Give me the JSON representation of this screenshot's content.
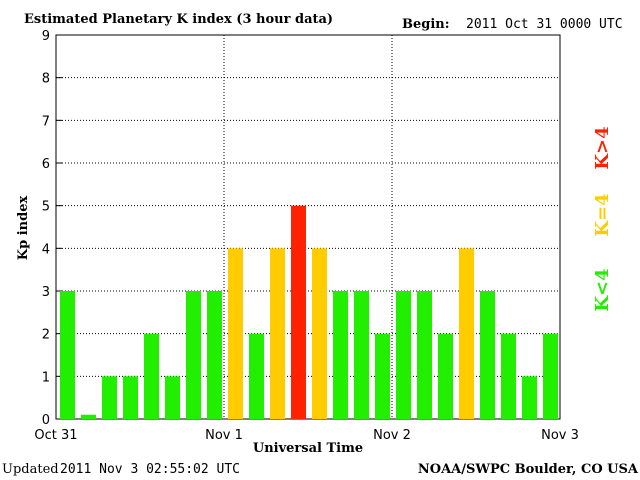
{
  "header": {
    "title": "Estimated Planetary K index (3 hour data)",
    "begin_label": "Begin:",
    "begin_value": "2011 Oct 31 0000 UTC"
  },
  "footer": {
    "updated_label": "Updated",
    "updated_value": "2011 Nov  3 02:55:02 UTC",
    "source": "NOAA/SWPC Boulder, CO USA"
  },
  "legend": {
    "low": "K<4",
    "mid": "K=4",
    "high": "K>4"
  },
  "colors": {
    "low": "#22ee00",
    "mid": "#ffcc00",
    "high": "#ff2200",
    "grid": "#000000"
  },
  "chart_data": {
    "type": "bar",
    "title": "Estimated Planetary K index (3 hour data)",
    "xlabel": "Universal Time",
    "ylabel": "Kp index",
    "ylim": [
      0,
      9
    ],
    "yticks": [
      0,
      1,
      2,
      3,
      4,
      5,
      6,
      7,
      8,
      9
    ],
    "xticks": [
      "Oct 31",
      "Nov 1",
      "Nov 2",
      "Nov 3"
    ],
    "interval_hours": 3,
    "values": [
      3,
      0,
      1,
      1,
      2,
      1,
      3,
      3,
      4,
      2,
      4,
      5,
      4,
      3,
      3,
      2,
      3,
      3,
      2,
      4,
      3,
      2,
      1,
      2
    ],
    "grid": "dotted"
  }
}
